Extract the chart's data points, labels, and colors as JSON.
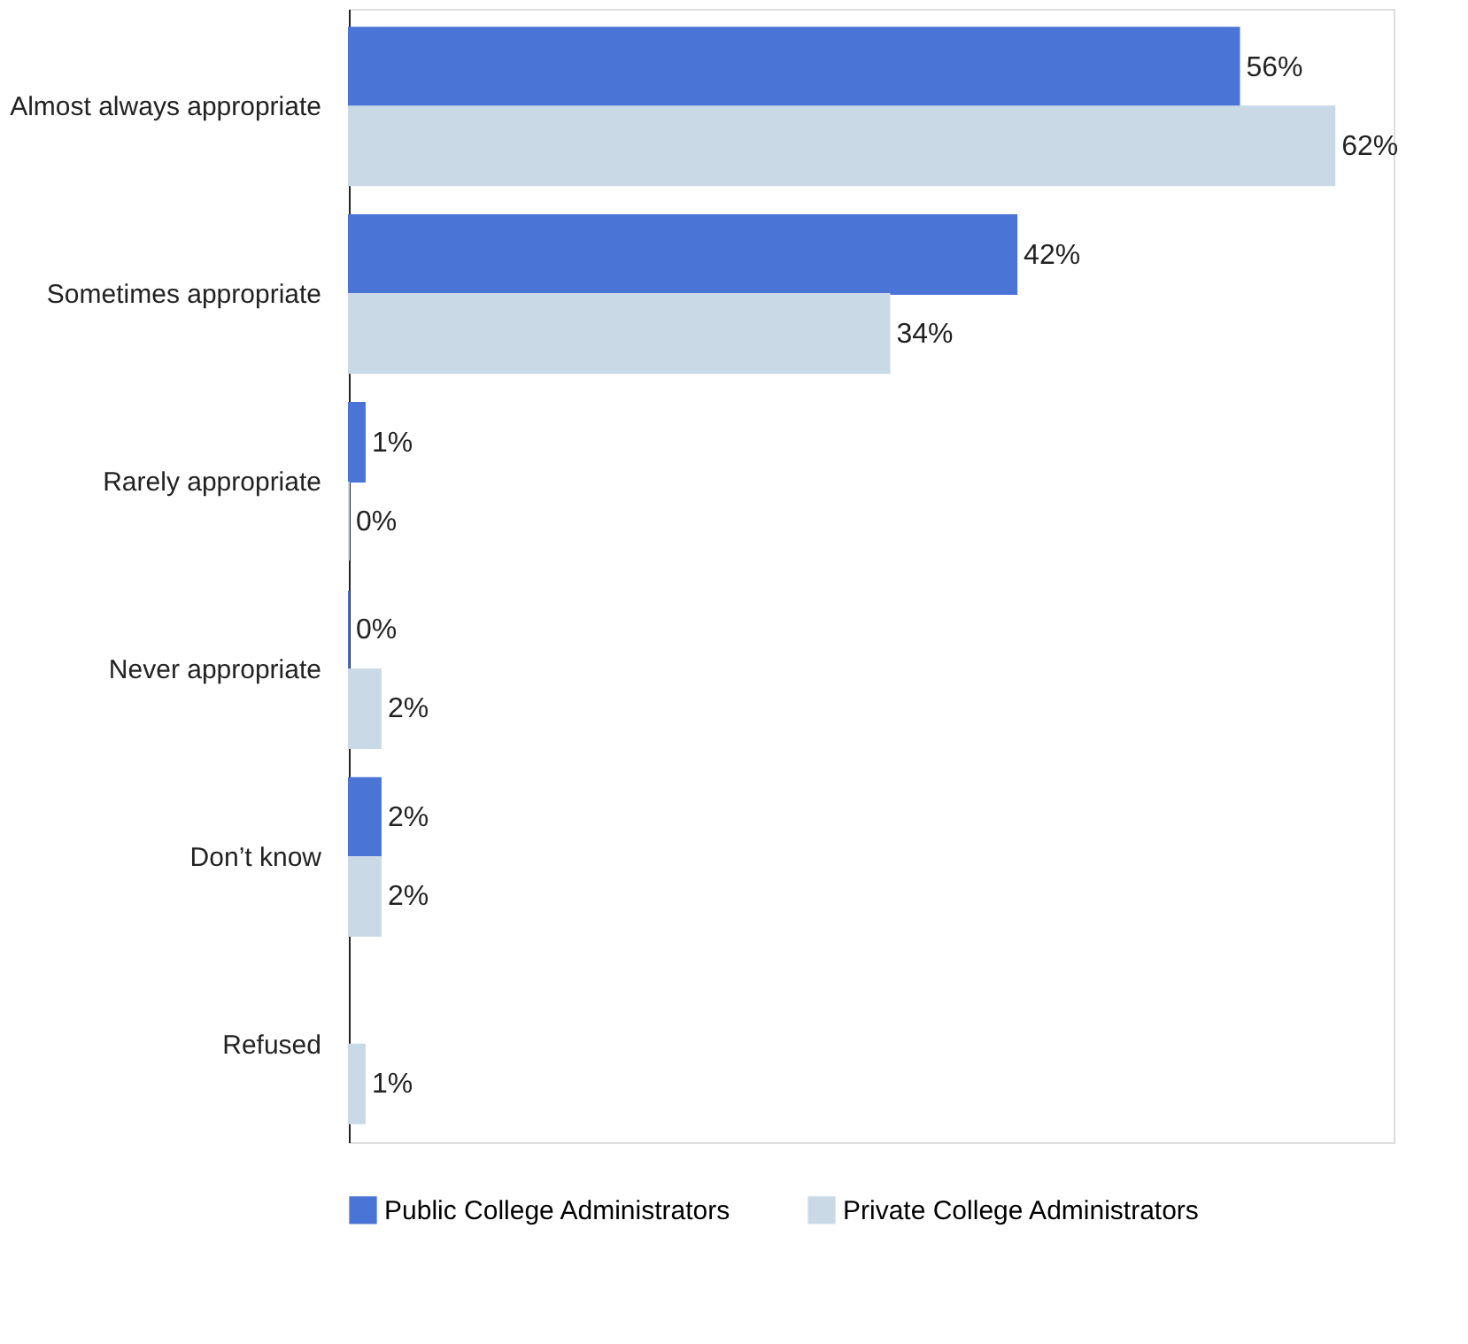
{
  "chart_data": {
    "type": "bar",
    "orientation": "horizontal",
    "categories": [
      "Almost always appropriate",
      "Sometimes appropriate",
      "Rarely appropriate",
      "Never appropriate",
      "Don’t know",
      "Refused"
    ],
    "series": [
      {
        "name": "Public College Administrators",
        "color": "#4a74d6",
        "values": [
          56,
          42,
          1,
          0,
          2,
          null
        ],
        "value_labels": [
          "56%",
          "42%",
          "1%",
          "0%",
          "2%",
          null
        ]
      },
      {
        "name": "Private College Administrators",
        "color": "#c9d9e6",
        "values": [
          62,
          34,
          0,
          2,
          2,
          1
        ],
        "value_labels": [
          "62%",
          "34%",
          "0%",
          "2%",
          "2%",
          "1%"
        ]
      }
    ],
    "legend": "bottom"
  }
}
